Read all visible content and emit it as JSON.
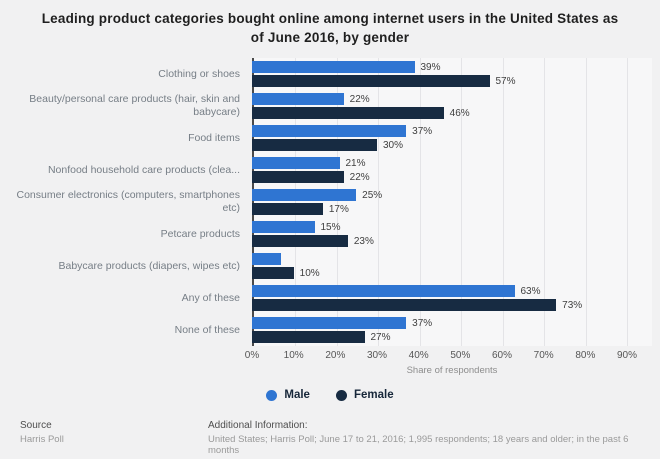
{
  "title": "Leading product categories bought online among internet users in the United States as of June 2016, by gender",
  "chart_data": {
    "type": "bar",
    "orientation": "horizontal",
    "title": "Leading product categories bought online among internet users in the United States as of June 2016, by gender",
    "categories": [
      "Clothing or shoes",
      "Beauty/personal care products (hair, skin and babycare)",
      "Food items",
      "Nonfood household care products (clea...",
      "Consumer electronics (computers, smartphones etc)",
      "Petcare products",
      "Babycare products (diapers, wipes etc)",
      "Any of these",
      "None of these"
    ],
    "series": [
      {
        "name": "Male",
        "color": "#2f75d2",
        "values": [
          39,
          22,
          37,
          21,
          25,
          15,
          7,
          63,
          37
        ],
        "labels": [
          "39%",
          "22%",
          "37%",
          "21%",
          "25%",
          "15%",
          "",
          "63%",
          "37%"
        ]
      },
      {
        "name": "Female",
        "color": "#172b42",
        "values": [
          57,
          46,
          30,
          22,
          17,
          23,
          10,
          73,
          27
        ],
        "labels": [
          "57%",
          "46%",
          "30%",
          "22%",
          "17%",
          "23%",
          "10%",
          "73%",
          "27%"
        ]
      }
    ],
    "xlabel": "Share of respondents",
    "x_ticks": [
      "0%",
      "10%",
      "20%",
      "30%",
      "40%",
      "50%",
      "60%",
      "70%",
      "80%",
      "90%"
    ],
    "xlim": [
      0,
      96
    ],
    "grid": true,
    "legend_position": "bottom"
  },
  "footer": {
    "source_label": "Source",
    "source_value": "Harris Poll",
    "additional_label": "Additional Information:",
    "additional_value": "United States; Harris Poll; June 17 to 21, 2016; 1,995 respondents; 18 years and older; in the past 6 months"
  }
}
